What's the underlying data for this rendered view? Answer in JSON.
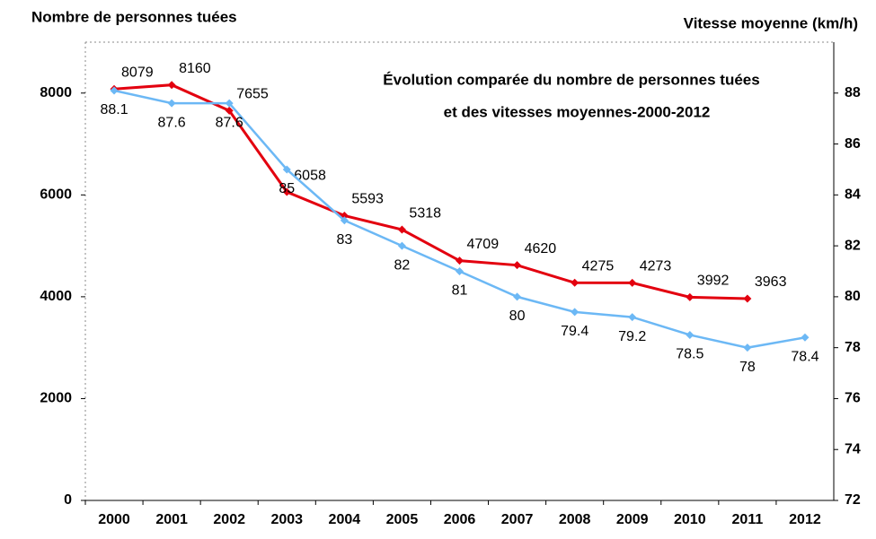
{
  "chart_data": {
    "type": "line",
    "title": [
      "Évolution comparée du nombre de personnes tuées",
      "et des vitesses moyennes-2000-2012"
    ],
    "ylabel": "Nombre de personnes tuées",
    "y2label": "Vitesse moyenne (km/h)",
    "categories": [
      "2000",
      "2001",
      "2002",
      "2003",
      "2004",
      "2005",
      "2006",
      "2007",
      "2008",
      "2009",
      "2010",
      "2011",
      "2012"
    ],
    "series": [
      {
        "color": "#e3000f",
        "values": [
          8079,
          8160,
          7655,
          6058,
          5593,
          5318,
          4709,
          4620,
          4275,
          4273,
          3992,
          3963,
          null
        ]
      },
      {
        "color": "#6cb8f5",
        "axis": "y2",
        "values": [
          88.1,
          87.6,
          87.6,
          85,
          83,
          82,
          81,
          80,
          79.4,
          79.2,
          78.5,
          78,
          78.4
        ]
      }
    ],
    "ylim": [
      0,
      9000
    ],
    "yticks": [
      0,
      2000,
      4000,
      6000,
      8000
    ],
    "y2lim": [
      72,
      90
    ],
    "y2ticks": [
      72,
      74,
      76,
      78,
      80,
      82,
      84,
      86,
      88
    ],
    "grid": false
  }
}
